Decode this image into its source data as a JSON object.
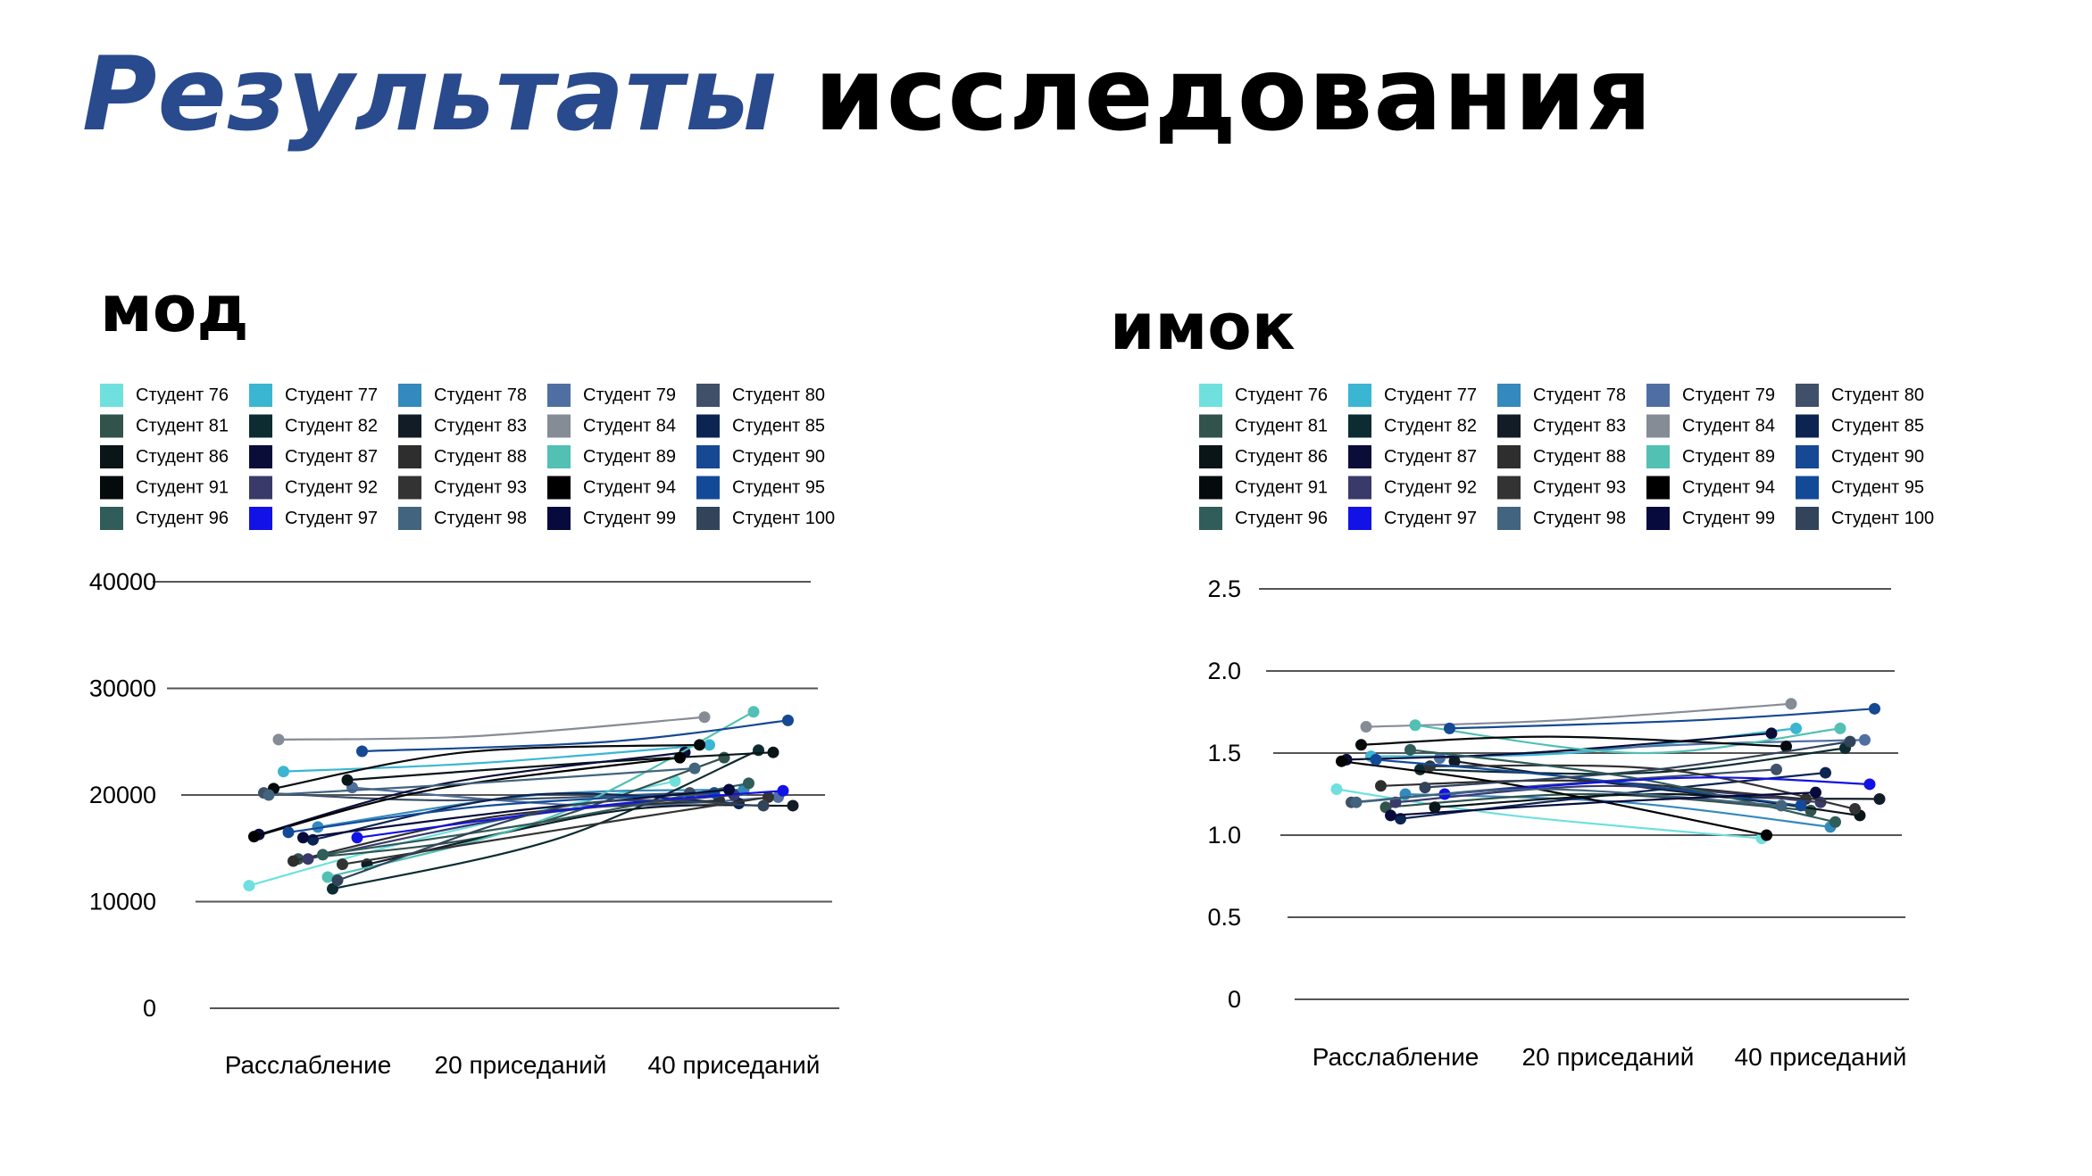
{
  "header": {
    "title_accent": "Результаты",
    "title_rest": "исследования"
  },
  "colors": {
    "accent": "#2a4a8e",
    "gridline": "#555555",
    "text": "#000000"
  },
  "chart_data": [
    {
      "id": "left",
      "type": "line",
      "title": "мод",
      "categories": [
        "Расслабление",
        "20 приседаний",
        "40 приседаний"
      ],
      "yticks": [
        "0",
        "10000",
        "20000",
        "30000",
        "40000"
      ],
      "ylim": [
        0,
        40000
      ],
      "grid": true,
      "legend_position": "top",
      "series": [
        {
          "name": "Студент 76",
          "color": "#6fe0de",
          "values": [
            11500,
            16000,
            21300
          ]
        },
        {
          "name": "Студент 77",
          "color": "#3ab6d2",
          "values": [
            22200,
            23000,
            24700
          ]
        },
        {
          "name": "Студент 78",
          "color": "#3489bd",
          "values": [
            17000,
            20000,
            20500
          ]
        },
        {
          "name": "Студент 79",
          "color": "#4f6fa2",
          "values": [
            20700,
            19000,
            19800
          ]
        },
        {
          "name": "Студент 80",
          "color": "#3f5068",
          "values": [
            20200,
            19500,
            20200
          ]
        },
        {
          "name": "Студент 81",
          "color": "#32524c",
          "values": [
            14000,
            16500,
            23500
          ]
        },
        {
          "name": "Студент 82",
          "color": "#0c2c32",
          "values": [
            11200,
            16000,
            24200
          ]
        },
        {
          "name": "Студент 83",
          "color": "#111c26",
          "values": [
            13500,
            18500,
            19000
          ]
        },
        {
          "name": "Студент 84",
          "color": "#868c96",
          "values": [
            25200,
            25500,
            27300
          ]
        },
        {
          "name": "Студент 85",
          "color": "#0c2452",
          "values": [
            15800,
            20000,
            19200
          ]
        },
        {
          "name": "Студент 86",
          "color": "#0a1518",
          "values": [
            21400,
            23000,
            24000
          ]
        },
        {
          "name": "Студент 87",
          "color": "#0a0d38",
          "values": [
            16300,
            21000,
            24000
          ]
        },
        {
          "name": "Студент 88",
          "color": "#2e2e2e",
          "values": [
            13800,
            18000,
            19500
          ]
        },
        {
          "name": "Студент 89",
          "color": "#52c0b3",
          "values": [
            12300,
            18000,
            27800
          ]
        },
        {
          "name": "Студент 90",
          "color": "#164894",
          "values": [
            24100,
            25000,
            27000
          ]
        },
        {
          "name": "Студент 91",
          "color": "#050a0c",
          "values": [
            20600,
            24000,
            24700
          ]
        },
        {
          "name": "Студент 92",
          "color": "#3a3a6a",
          "values": [
            14000,
            18000,
            20000
          ]
        },
        {
          "name": "Студент 93",
          "color": "#333333",
          "values": [
            13500,
            17000,
            19800
          ]
        },
        {
          "name": "Студент 94",
          "color": "#000000",
          "values": [
            16100,
            20500,
            23500
          ]
        },
        {
          "name": "Студент 95",
          "color": "#134a97",
          "values": [
            16500,
            19000,
            20200
          ]
        },
        {
          "name": "Студент 96",
          "color": "#305c5a",
          "values": [
            14400,
            17500,
            21100
          ]
        },
        {
          "name": "Студент 97",
          "color": "#1212e6",
          "values": [
            16000,
            19000,
            20400
          ]
        },
        {
          "name": "Студент 98",
          "color": "#42647e",
          "values": [
            20000,
            21000,
            22500
          ]
        },
        {
          "name": "Студент 99",
          "color": "#070a3c",
          "values": [
            16000,
            18500,
            20500
          ]
        },
        {
          "name": "Студент 100",
          "color": "#32445a",
          "values": [
            12000,
            19000,
            19000
          ]
        }
      ]
    },
    {
      "id": "right",
      "type": "line",
      "title": "имок",
      "categories": [
        "Расслабление",
        "20 приседаний",
        "40 приседаний"
      ],
      "yticks": [
        "0",
        "0.5",
        "1.0",
        "1.5",
        "2.0",
        "2.5"
      ],
      "ylim": [
        0,
        2.5
      ],
      "grid": true,
      "legend_position": "top",
      "series": [
        {
          "name": "Студент 76",
          "color": "#6fe0de",
          "values": [
            1.28,
            1.12,
            0.98
          ]
        },
        {
          "name": "Студент 77",
          "color": "#3ab6d2",
          "values": [
            1.48,
            1.5,
            1.65
          ]
        },
        {
          "name": "Студент 78",
          "color": "#3489bd",
          "values": [
            1.25,
            1.2,
            1.05
          ]
        },
        {
          "name": "Студент 79",
          "color": "#4f6fa2",
          "values": [
            1.47,
            1.55,
            1.58
          ]
        },
        {
          "name": "Студент 80",
          "color": "#3f5068",
          "values": [
            1.2,
            1.3,
            1.4
          ]
        },
        {
          "name": "Студент 81",
          "color": "#32524c",
          "values": [
            1.17,
            1.25,
            1.15
          ]
        },
        {
          "name": "Студент 82",
          "color": "#0c2c32",
          "values": [
            1.4,
            1.38,
            1.53
          ]
        },
        {
          "name": "Студент 83",
          "color": "#111c26",
          "values": [
            1.45,
            1.25,
            1.22
          ]
        },
        {
          "name": "Студент 84",
          "color": "#868c96",
          "values": [
            1.66,
            1.7,
            1.8
          ]
        },
        {
          "name": "Студент 85",
          "color": "#0c2452",
          "values": [
            1.1,
            1.25,
            1.38
          ]
        },
        {
          "name": "Студент 86",
          "color": "#0a1518",
          "values": [
            1.17,
            1.25,
            1.12
          ]
        },
        {
          "name": "Студент 87",
          "color": "#0a0d38",
          "values": [
            1.46,
            1.5,
            1.62
          ]
        },
        {
          "name": "Студент 88",
          "color": "#2e2e2e",
          "values": [
            1.3,
            1.33,
            1.22
          ]
        },
        {
          "name": "Студент 89",
          "color": "#52c0b3",
          "values": [
            1.67,
            1.5,
            1.65
          ]
        },
        {
          "name": "Студент 90",
          "color": "#164894",
          "values": [
            1.65,
            1.7,
            1.77
          ]
        },
        {
          "name": "Студент 91",
          "color": "#050a0c",
          "values": [
            1.55,
            1.6,
            1.54
          ]
        },
        {
          "name": "Студент 92",
          "color": "#3a3a6a",
          "values": [
            1.2,
            1.3,
            1.2
          ]
        },
        {
          "name": "Студент 93",
          "color": "#333333",
          "values": [
            1.42,
            1.4,
            1.16
          ]
        },
        {
          "name": "Студент 94",
          "color": "#000000",
          "values": [
            1.45,
            1.3,
            1.0
          ]
        },
        {
          "name": "Студент 95",
          "color": "#134a97",
          "values": [
            1.46,
            1.35,
            1.18
          ]
        },
        {
          "name": "Студент 96",
          "color": "#305c5a",
          "values": [
            1.52,
            1.35,
            1.08
          ]
        },
        {
          "name": "Студент 97",
          "color": "#1212e6",
          "values": [
            1.25,
            1.35,
            1.31
          ]
        },
        {
          "name": "Студент 98",
          "color": "#42647e",
          "values": [
            1.2,
            1.28,
            1.18
          ]
        },
        {
          "name": "Студент 99",
          "color": "#070a3c",
          "values": [
            1.12,
            1.2,
            1.26
          ]
        },
        {
          "name": "Студент 100",
          "color": "#32445a",
          "values": [
            1.29,
            1.4,
            1.57
          ]
        }
      ]
    }
  ]
}
